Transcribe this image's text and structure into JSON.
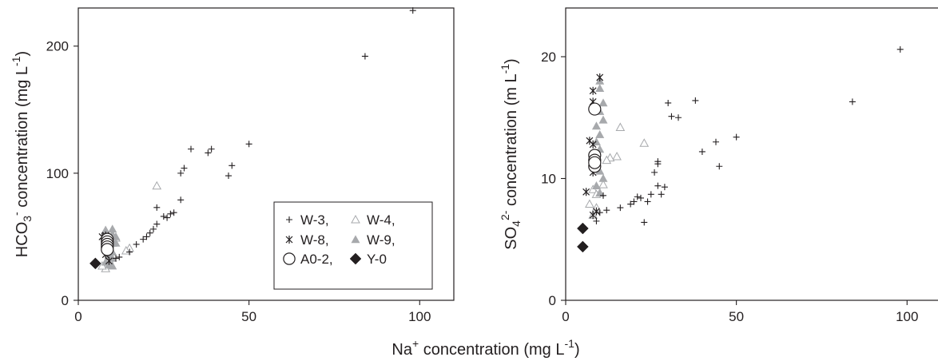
{
  "figure": {
    "shared_xlabel": "Na⁺ concentration (mg L⁻¹)"
  },
  "chart_data": [
    {
      "type": "scatter",
      "title": "",
      "xlabel": "Na⁺ concentration (mg L⁻¹)",
      "ylabel": "HCO₃⁻ concentration (mg L⁻¹)",
      "xlim": [
        0,
        110
      ],
      "ylim": [
        0,
        230
      ],
      "xticks": [
        0,
        50,
        100
      ],
      "yticks": [
        0,
        100,
        200
      ],
      "xtick_labels": [
        "0",
        "50",
        "100"
      ],
      "ytick_labels": [
        "0",
        "100",
        "200"
      ],
      "grid": false,
      "legend_position": "bottom-right",
      "series": [
        {
          "name": "W-3,",
          "marker": "plus",
          "color": "#231f20",
          "x": [
            98,
            84,
            50,
            45,
            44,
            39,
            38,
            33,
            31,
            30,
            30,
            28,
            27,
            26,
            25,
            23,
            23,
            22,
            21,
            20,
            19,
            17,
            15,
            12,
            11
          ],
          "y": [
            228,
            192,
            123,
            106,
            98,
            119,
            116,
            119,
            104,
            100,
            79,
            69,
            68,
            65,
            66,
            73,
            60,
            56,
            53,
            50,
            48,
            44,
            38,
            34,
            33
          ]
        },
        {
          "name": "W-4,",
          "marker": "triangle-open",
          "color": "#a7a9ac",
          "x": [
            23,
            15,
            14,
            11,
            10,
            9,
            9,
            8,
            8,
            7,
            8,
            10
          ],
          "y": [
            90,
            41,
            39,
            49,
            45,
            37,
            32,
            28,
            25,
            27,
            55,
            46
          ]
        },
        {
          "name": "W-8,",
          "marker": "x",
          "color": "#231f20",
          "x": [
            8,
            8,
            8,
            7,
            8,
            8,
            9
          ],
          "y": [
            51,
            47,
            43,
            50,
            40,
            36,
            31
          ]
        },
        {
          "name": "W-9,",
          "marker": "triangle-filled",
          "color": "#a7a9ac",
          "x": [
            10,
            10,
            11,
            10,
            11,
            9,
            10,
            9,
            10,
            8,
            9,
            10,
            8
          ],
          "y": [
            56,
            52,
            50,
            46,
            45,
            42,
            38,
            35,
            33,
            30,
            28,
            27,
            54
          ]
        },
        {
          "name": "A0-2,",
          "marker": "circle-open",
          "color": "#231f20",
          "x": [
            8.5,
            8.5,
            8.5,
            8.5,
            8.5
          ],
          "y": [
            48,
            46,
            44,
            42,
            40
          ]
        },
        {
          "name": "Y-0",
          "marker": "diamond-filled",
          "color": "#231f20",
          "x": [
            5
          ],
          "y": [
            29
          ]
        }
      ]
    },
    {
      "type": "scatter",
      "title": "",
      "xlabel": "Na⁺ concentration (mg L⁻¹)",
      "ylabel": "SO₄²⁻ concentration (m L⁻¹)",
      "xlim": [
        0,
        110
      ],
      "ylim": [
        0,
        24
      ],
      "xticks": [
        0,
        50,
        100
      ],
      "yticks": [
        0,
        10,
        20
      ],
      "xtick_labels": [
        "0",
        "50",
        "100"
      ],
      "ytick_labels": [
        "0",
        "10",
        "20"
      ],
      "grid": false,
      "series": [
        {
          "name": "W-3,",
          "marker": "plus",
          "color": "#231f20",
          "x": [
            98,
            84,
            50,
            45,
            44,
            40,
            38,
            33,
            31,
            30,
            29,
            27,
            27,
            26,
            25,
            24,
            23,
            22,
            21,
            20,
            19,
            16,
            12,
            11,
            10,
            9,
            27,
            28
          ],
          "y": [
            20.6,
            16.3,
            13.4,
            11.0,
            13.0,
            12.2,
            16.4,
            15.0,
            15.1,
            16.2,
            9.3,
            11.4,
            11.2,
            10.5,
            8.7,
            8.1,
            6.4,
            8.4,
            8.5,
            8.1,
            7.9,
            7.6,
            7.4,
            8.6,
            7.2,
            6.5,
            9.4,
            8.7
          ]
        },
        {
          "name": "W-4,",
          "marker": "triangle-open",
          "color": "#a7a9ac",
          "x": [
            23,
            16,
            15,
            13,
            12,
            11,
            10,
            9,
            8,
            7,
            8,
            9
          ],
          "y": [
            12.9,
            14.2,
            11.8,
            11.7,
            11.5,
            9.5,
            8.8,
            7.6,
            7.0,
            7.9,
            9.1,
            8.7
          ]
        },
        {
          "name": "W-8,",
          "marker": "x",
          "color": "#231f20",
          "x": [
            10,
            8,
            8,
            7,
            8,
            8,
            9,
            6,
            8
          ],
          "y": [
            18.3,
            17.2,
            16.3,
            13.1,
            12.8,
            10.5,
            7.3,
            8.9,
            7.0
          ]
        },
        {
          "name": "W-9,",
          "marker": "triangle-filled",
          "color": "#a7a9ac",
          "x": [
            10,
            10,
            11,
            10,
            11,
            9,
            10,
            9,
            10,
            8,
            9,
            10,
            11,
            9,
            10
          ],
          "y": [
            18.0,
            17.4,
            16.2,
            15.5,
            14.8,
            14.3,
            13.6,
            13.0,
            12.4,
            11.8,
            11.2,
            10.6,
            10.0,
            9.4,
            8.8
          ]
        },
        {
          "name": "A0-2,",
          "marker": "circle-open",
          "color": "#231f20",
          "x": [
            8.5,
            8.5,
            8.5,
            8.5,
            8.5
          ],
          "y": [
            15.7,
            11.9,
            11.5,
            11.0,
            11.3
          ]
        },
        {
          "name": "Y-0",
          "marker": "diamond-filled",
          "color": "#231f20",
          "x": [
            5,
            5
          ],
          "y": [
            5.9,
            4.4
          ]
        }
      ]
    }
  ],
  "legend": {
    "entries": [
      "W-3,",
      "W-4,",
      "W-8,",
      "W-9,",
      "A0-2,",
      "Y-0"
    ]
  },
  "colors": {
    "ink": "#231f20",
    "gray_marker": "#a7a9ac"
  }
}
